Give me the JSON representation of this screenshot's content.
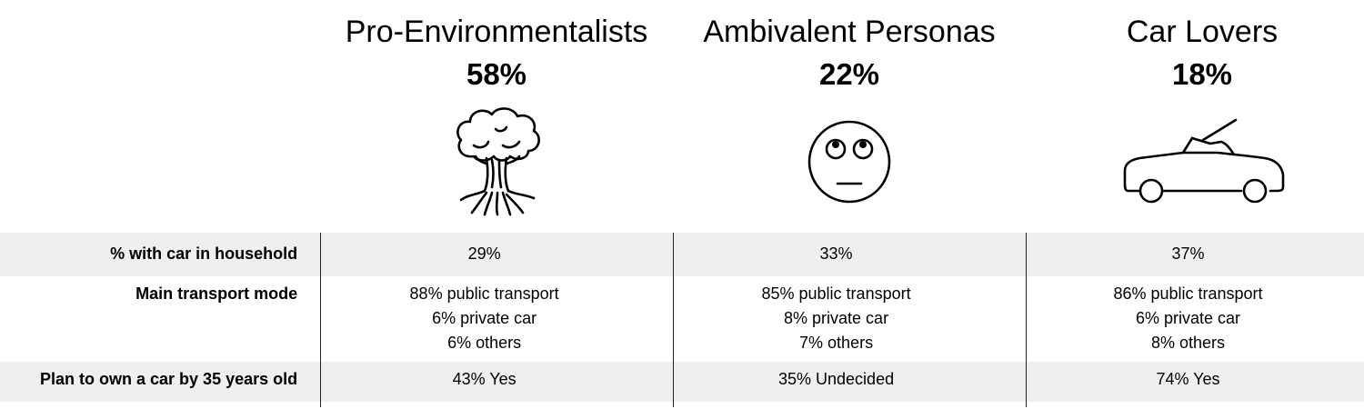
{
  "columns": [
    {
      "name": "Pro-Environmentalists",
      "percent": "58%",
      "icon": "tree-icon"
    },
    {
      "name": "Ambivalent Personas",
      "percent": "22%",
      "icon": "eye-roll-face-icon"
    },
    {
      "name": "Car Lovers",
      "percent": "18%",
      "icon": "convertible-car-icon"
    }
  ],
  "rows": [
    {
      "label": "% with car in household",
      "values": [
        "29%",
        "33%",
        "37%"
      ]
    },
    {
      "label": "Main transport mode",
      "values": [
        [
          "88% public transport",
          "6% private car",
          "6% others"
        ],
        [
          "85% public transport",
          "8% private car",
          "7% others"
        ],
        [
          "86% public transport",
          "6% private car",
          "8% others"
        ]
      ]
    },
    {
      "label": "Plan to own a car by 35 years old",
      "values": [
        "43% Yes",
        "35% Undecided",
        "74% Yes"
      ]
    }
  ],
  "colors": {
    "row_shade": "#efefef",
    "divider": "#222222"
  }
}
